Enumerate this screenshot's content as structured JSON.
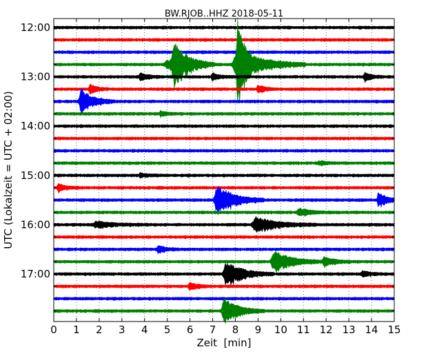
{
  "chart_data": {
    "type": "line",
    "title": "BW.RJOB..HHZ 2018-05-11",
    "xlabel": "Zeit  [min]",
    "ylabel": "UTC (Lokalzeit = UTC + 02:00)",
    "xlim": [
      0,
      15
    ],
    "x_ticks": [
      0,
      1,
      2,
      3,
      4,
      5,
      6,
      7,
      8,
      9,
      10,
      11,
      12,
      13,
      14,
      15
    ],
    "y_ticks": [
      "12:00",
      "13:00",
      "14:00",
      "15:00",
      "16:00",
      "17:00"
    ],
    "grid": "vertical dotted",
    "trace_colors": [
      "#000000",
      "#ff0000",
      "#0000ff",
      "#008000"
    ],
    "traces": [
      {
        "start": "12:00",
        "events": []
      },
      {
        "start": "12:15",
        "events": []
      },
      {
        "start": "12:30",
        "events": []
      },
      {
        "start": "12:45",
        "events": [
          {
            "t": 5.0,
            "amp": 0.35,
            "dur": 0.6
          },
          {
            "t": 5.3,
            "amp": 1.7,
            "dur": 0.6
          },
          {
            "t": 8.1,
            "amp": 1.4,
            "dur": 1.0
          },
          {
            "t": 8.1,
            "amp": 3.2,
            "dur": 0.2
          }
        ]
      },
      {
        "start": "13:00",
        "events": [
          {
            "t": 3.8,
            "amp": 0.3,
            "dur": 0.3
          },
          {
            "t": 7.0,
            "amp": 0.25,
            "dur": 0.3
          },
          {
            "t": 13.7,
            "amp": 0.3,
            "dur": 0.3
          }
        ]
      },
      {
        "start": "13:15",
        "events": [
          {
            "t": 1.6,
            "amp": 0.4,
            "dur": 0.3
          },
          {
            "t": 9.0,
            "amp": 0.3,
            "dur": 0.3
          }
        ]
      },
      {
        "start": "13:30",
        "events": [
          {
            "t": 1.2,
            "amp": 1.1,
            "dur": 0.5
          }
        ]
      },
      {
        "start": "13:45",
        "events": [
          {
            "t": 4.7,
            "amp": 0.2,
            "dur": 0.3
          }
        ]
      },
      {
        "start": "14:00",
        "events": []
      },
      {
        "start": "14:15",
        "events": []
      },
      {
        "start": "14:30",
        "events": []
      },
      {
        "start": "14:45",
        "events": [
          {
            "t": 11.7,
            "amp": 0.15,
            "dur": 0.3
          }
        ]
      },
      {
        "start": "15:00",
        "events": [
          {
            "t": 3.8,
            "amp": 0.15,
            "dur": 0.3
          }
        ]
      },
      {
        "start": "15:15",
        "events": [
          {
            "t": 0.2,
            "amp": 0.3,
            "dur": 0.3
          }
        ]
      },
      {
        "start": "15:30",
        "events": [
          {
            "t": 7.2,
            "amp": 1.2,
            "dur": 0.7
          },
          {
            "t": 14.3,
            "amp": 0.7,
            "dur": 0.3
          }
        ]
      },
      {
        "start": "15:45",
        "events": [
          {
            "t": 10.8,
            "amp": 0.3,
            "dur": 0.5
          }
        ]
      },
      {
        "start": "16:00",
        "events": [
          {
            "t": 1.9,
            "amp": 0.25,
            "dur": 0.8
          },
          {
            "t": 8.9,
            "amp": 0.6,
            "dur": 0.9
          }
        ]
      },
      {
        "start": "16:15",
        "events": []
      },
      {
        "start": "16:30",
        "events": [
          {
            "t": 4.6,
            "amp": 0.3,
            "dur": 0.3
          }
        ]
      },
      {
        "start": "16:45",
        "events": [
          {
            "t": 9.7,
            "amp": 0.9,
            "dur": 0.7
          },
          {
            "t": 11.9,
            "amp": 0.4,
            "dur": 0.4
          }
        ]
      },
      {
        "start": "17:00",
        "events": [
          {
            "t": 7.6,
            "amp": 1.0,
            "dur": 0.7
          },
          {
            "t": 13.6,
            "amp": 0.25,
            "dur": 0.3
          }
        ]
      },
      {
        "start": "17:15",
        "events": [
          {
            "t": 6.0,
            "amp": 0.3,
            "dur": 0.3
          }
        ]
      },
      {
        "start": "17:30",
        "events": []
      },
      {
        "start": "17:45",
        "events": [
          {
            "t": 7.5,
            "amp": 1.0,
            "dur": 0.6
          }
        ]
      }
    ]
  }
}
